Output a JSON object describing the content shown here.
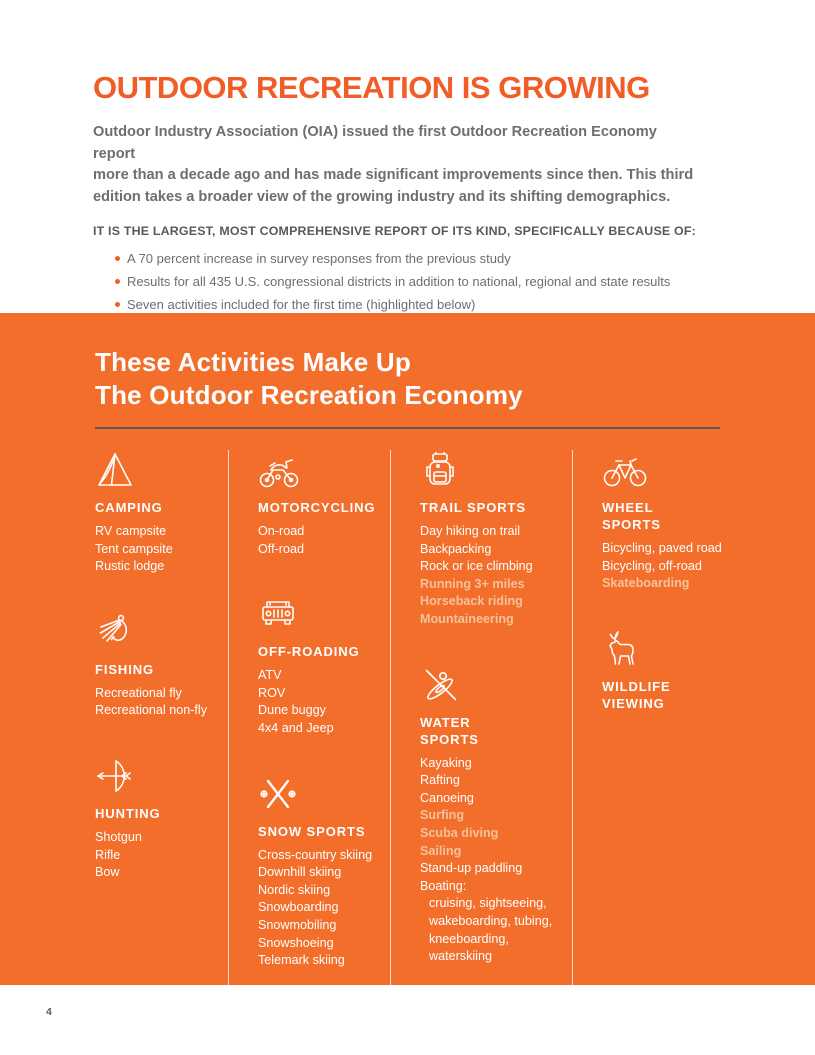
{
  "colors": {
    "accent_orange": "#F15D26",
    "section_orange": "#F26E2A",
    "highlight_peach": "#F6C29B",
    "body_gray": "#6D6E71",
    "dark_gray": "#58595B"
  },
  "intro": {
    "title": "OUTDOOR RECREATION IS GROWING",
    "paragraph_lines": [
      "Outdoor Industry Association (OIA) issued the first Outdoor Recreation Economy report",
      "more than a decade ago and has made significant improvements since then. This third",
      "edition takes a broader view of the growing industry and its shifting demographics."
    ],
    "subhead": "IT IS THE LARGEST, MOST COMPREHENSIVE REPORT OF ITS KIND, SPECIFICALLY BECAUSE OF:",
    "bullets": [
      "A 70 percent increase in survey responses from the previous study",
      "Results for all 435 U.S. congressional districts in addition to national, regional and state results",
      "Seven activities included for the first time (highlighted below)"
    ]
  },
  "activities": {
    "heading_line1": "These Activities Make Up",
    "heading_line2": "The Outdoor Recreation Economy",
    "columns": [
      {
        "groups": [
          {
            "icon": "tent-icon",
            "title": "CAMPING",
            "items": [
              {
                "label": "RV campsite"
              },
              {
                "label": "Tent campsite"
              },
              {
                "label": "Rustic lodge"
              }
            ]
          },
          {
            "icon": "fishing-fly-icon",
            "title": "FISHING",
            "items": [
              {
                "label": "Recreational fly"
              },
              {
                "label": "Recreational non-fly"
              }
            ]
          },
          {
            "icon": "bow-arrow-icon",
            "title": "HUNTING",
            "items": [
              {
                "label": "Shotgun"
              },
              {
                "label": "Rifle"
              },
              {
                "label": "Bow"
              }
            ]
          }
        ]
      },
      {
        "groups": [
          {
            "icon": "motorcycle-icon",
            "title": "MOTORCYCLING",
            "items": [
              {
                "label": "On-road"
              },
              {
                "label": "Off-road"
              }
            ]
          },
          {
            "icon": "jeep-icon",
            "title": "OFF-ROADING",
            "items": [
              {
                "label": "ATV"
              },
              {
                "label": "ROV"
              },
              {
                "label": "Dune buggy"
              },
              {
                "label": "4x4 and Jeep"
              }
            ]
          },
          {
            "icon": "crossed-skis-icon",
            "title": "SNOW SPORTS",
            "items": [
              {
                "label": "Cross-country skiing"
              },
              {
                "label": "Downhill skiing"
              },
              {
                "label": "Nordic skiing"
              },
              {
                "label": "Snowboarding"
              },
              {
                "label": "Snowmobiling"
              },
              {
                "label": "Snowshoeing"
              },
              {
                "label": "Telemark skiing"
              }
            ]
          }
        ]
      },
      {
        "groups": [
          {
            "icon": "backpack-icon",
            "title": "TRAIL SPORTS",
            "items": [
              {
                "label": "Day hiking on trail"
              },
              {
                "label": "Backpacking"
              },
              {
                "label": "Rock or ice climbing"
              },
              {
                "label": "Running 3+ miles",
                "highlight": true
              },
              {
                "label": "Horseback riding",
                "highlight": true
              },
              {
                "label": "Mountaineering",
                "highlight": true
              }
            ]
          },
          {
            "icon": "kayak-icon",
            "title": "WATER SPORTS",
            "items": [
              {
                "label": "Kayaking"
              },
              {
                "label": "Rafting"
              },
              {
                "label": "Canoeing"
              },
              {
                "label": "Surfing",
                "highlight": true
              },
              {
                "label": "Scuba diving",
                "highlight": true
              },
              {
                "label": "Sailing",
                "highlight": true
              },
              {
                "label": "Stand-up paddling"
              },
              {
                "label": "Boating:"
              },
              {
                "label": "cruising, sightseeing,",
                "indent": true
              },
              {
                "label": "wakeboarding, tubing,",
                "indent": true
              },
              {
                "label": "kneeboarding,",
                "indent": true
              },
              {
                "label": "waterskiing",
                "indent": true
              }
            ]
          }
        ]
      },
      {
        "groups": [
          {
            "icon": "bicycle-icon",
            "title": "WHEEL SPORTS",
            "items": [
              {
                "label": "Bicycling, paved road"
              },
              {
                "label": "Bicycling, off-road"
              },
              {
                "label": "Skateboarding",
                "highlight": true
              }
            ]
          },
          {
            "icon": "deer-icon",
            "title": "WILDLIFE VIEWING",
            "items": []
          }
        ]
      }
    ]
  },
  "footer": {
    "page_number": "4"
  }
}
